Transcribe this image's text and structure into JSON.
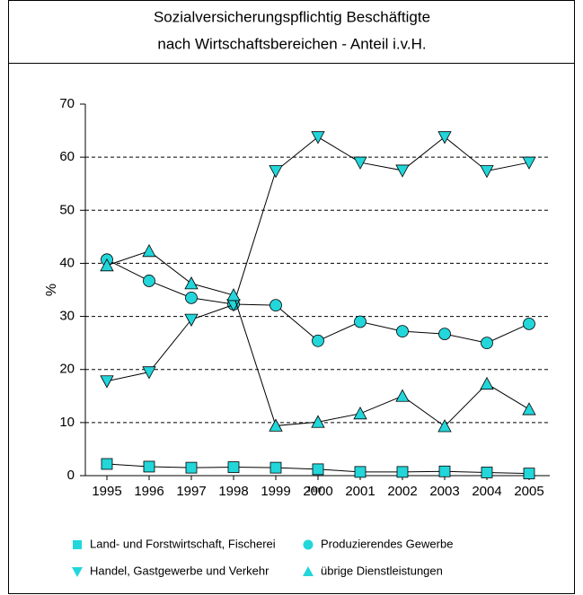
{
  "chart_data": {
    "type": "line",
    "title": [
      "Sozialversicherungspflichtig Beschäftigte",
      "nach Wirtschaftsbereichen - Anteil i.v.H."
    ],
    "xlabel": "Jahr",
    "ylabel": "%",
    "categories": [
      "1995",
      "1996",
      "1997",
      "1998",
      "1999",
      "2000",
      "2001",
      "2002",
      "2003",
      "2004",
      "2005"
    ],
    "ylim": [
      0,
      70
    ],
    "yticks": [
      0,
      10,
      20,
      30,
      40,
      50,
      60,
      70
    ],
    "grid": true,
    "series": [
      {
        "name": "Land- und Forstwirtschaft, Fischerei",
        "color": "#22d6da",
        "marker": "square",
        "values": [
          2.2,
          1.7,
          1.5,
          1.6,
          1.5,
          1.2,
          0.7,
          0.7,
          0.8,
          0.6,
          0.4
        ]
      },
      {
        "name": "Produzierendes Gewerbe",
        "color": "#22d6da",
        "marker": "circle",
        "values": [
          40.7,
          36.7,
          33.5,
          32.3,
          32.1,
          25.4,
          29,
          27.2,
          26.7,
          25,
          28.6
        ]
      },
      {
        "name": "Handel, Gastgewerbe und Verkehr",
        "color": "#22d6da",
        "marker": "triangle-down",
        "values": [
          17.8,
          19.5,
          29.4,
          32.2,
          57.4,
          63.8,
          59,
          57.5,
          63.8,
          57.4,
          59
        ]
      },
      {
        "name": "übrige Dienstleistungen",
        "color": "#22d6da",
        "marker": "triangle-up",
        "values": [
          39.6,
          42.3,
          36.2,
          34,
          9.4,
          10.1,
          11.7,
          15,
          9.3,
          17.3,
          12.5
        ]
      }
    ]
  }
}
